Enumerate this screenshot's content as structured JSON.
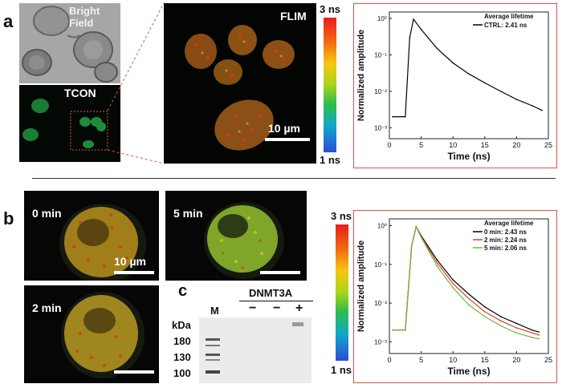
{
  "panel_a": {
    "letter": "a",
    "bright_field_label": "Bright Field",
    "tcon_label": "TCON",
    "flim_label": "FLIM",
    "scale_label": "10 µm",
    "colorbar_top": "3 ns",
    "colorbar_bottom": "1 ns"
  },
  "panel_b": {
    "letter": "b",
    "times": [
      "0 min",
      "5 min",
      "2 min"
    ],
    "scale_label": "10 µm",
    "colorbar_top": "3 ns",
    "colorbar_bottom": "1 ns"
  },
  "panel_c": {
    "letter": "c",
    "header": "DNMT3A",
    "lane_marker": "M",
    "signs": [
      "−",
      "−",
      "+"
    ],
    "unit": "kDa",
    "markers": [
      "180",
      "130",
      "100"
    ]
  },
  "chart_data": [
    {
      "type": "line",
      "xlabel": "Time (ns)",
      "ylabel": "Normalized amplitude",
      "xlim": [
        0,
        25
      ],
      "ylim": [
        0.0005,
        1.5
      ],
      "yscale": "log",
      "xticks": [
        "0",
        "5",
        "10",
        "15",
        "20",
        "25"
      ],
      "yticks": [
        "10⁰",
        "10⁻¹",
        "10⁻²",
        "10⁻³"
      ],
      "legend_title": "Average lifetime",
      "legend_position": "top-right",
      "series": [
        {
          "name": "CTRL: 2.41 ns",
          "color": "#000000",
          "x": [
            0.5,
            2.5,
            3.2,
            3.8,
            5,
            7.5,
            10,
            12.5,
            15,
            17.5,
            20,
            22.5,
            24
          ],
          "y": [
            0.002,
            0.002,
            0.3,
            0.95,
            0.5,
            0.15,
            0.06,
            0.03,
            0.017,
            0.01,
            0.006,
            0.004,
            0.003
          ]
        }
      ]
    },
    {
      "type": "line",
      "xlabel": "Time (ns)",
      "ylabel": "Normalized amplitude",
      "xlim": [
        0,
        25
      ],
      "ylim": [
        0.0005,
        1.5
      ],
      "yscale": "log",
      "xticks": [
        "0",
        "5",
        "10",
        "15",
        "20",
        "25"
      ],
      "yticks": [
        "10⁰",
        "10⁻¹",
        "10⁻²",
        "10⁻³"
      ],
      "legend_title": "Average lifetime",
      "legend_position": "top-right",
      "series": [
        {
          "name": "0 min: 2.43 ns",
          "color": "#000000",
          "x": [
            0.5,
            2.5,
            3.5,
            4.2,
            5,
            7.5,
            10,
            12.5,
            15,
            17.5,
            20,
            22.5,
            23.5
          ],
          "y": [
            0.002,
            0.002,
            0.3,
            0.95,
            0.55,
            0.13,
            0.04,
            0.017,
            0.008,
            0.0045,
            0.003,
            0.002,
            0.0018
          ]
        },
        {
          "name": "2 min: 2.24 ns",
          "color": "#e53b2e",
          "x": [
            0.5,
            2.5,
            3.5,
            4.2,
            5,
            7.5,
            10,
            12.5,
            15,
            17.5,
            20,
            22.5,
            23.5
          ],
          "y": [
            0.002,
            0.002,
            0.3,
            0.95,
            0.52,
            0.11,
            0.032,
            0.013,
            0.006,
            0.0035,
            0.0023,
            0.0017,
            0.0015
          ]
        },
        {
          "name": "5 min: 2.06 ns",
          "color": "#6fb83c",
          "x": [
            0.5,
            2.5,
            3.5,
            4.2,
            5,
            7.5,
            10,
            12.5,
            15,
            17.5,
            20,
            22.5,
            23.5
          ],
          "y": [
            0.002,
            0.002,
            0.3,
            0.95,
            0.5,
            0.09,
            0.025,
            0.009,
            0.0045,
            0.0026,
            0.0017,
            0.0013,
            0.0012
          ]
        }
      ]
    }
  ]
}
